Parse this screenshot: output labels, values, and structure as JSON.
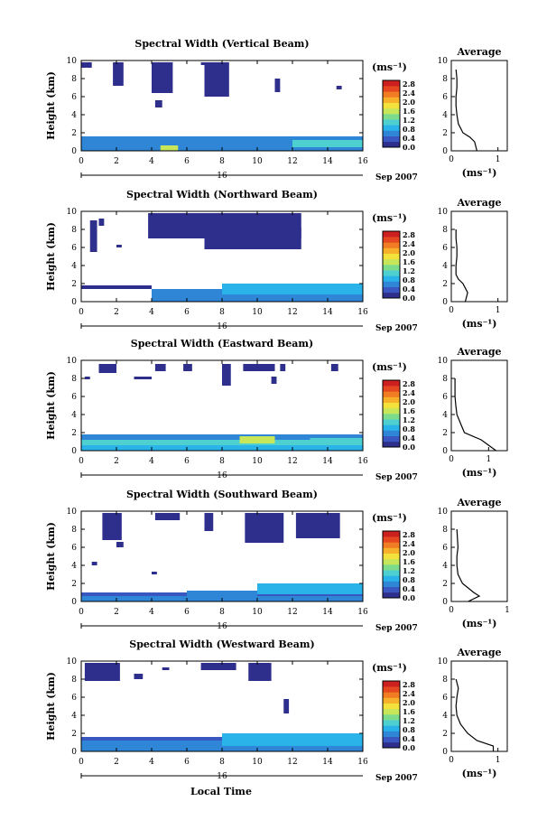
{
  "figure": {
    "xlabel": "Local Time",
    "date_prefix": "16",
    "date_suffix": "Sep 2007",
    "ylabel": "Height (km)",
    "unit": "(ms⁻¹)",
    "avg_title": "Average",
    "avg_xlabel": "(ms⁻¹)"
  },
  "colorbar": {
    "labels": [
      "2.8",
      "2.4",
      "2.0",
      "1.6",
      "1.2",
      "0.8",
      "0.4",
      "0.0"
    ],
    "colors": [
      "#2e2f8c",
      "#3a56c0",
      "#2f86d6",
      "#2ab3e8",
      "#4fd0d0",
      "#7ddc8c",
      "#c7e65a",
      "#f4e23c",
      "#f7b02a",
      "#f07d23",
      "#e54720",
      "#cc1f1f"
    ]
  },
  "chart_data": [
    {
      "type": "heatmap",
      "title": "Spectral Width (Vertical Beam)",
      "x_ticks": [
        0,
        2,
        4,
        6,
        8,
        10,
        12,
        14,
        16
      ],
      "y_ticks": [
        0,
        2,
        4,
        6,
        8,
        10
      ],
      "xlim": [
        0,
        16
      ],
      "ylim": [
        0,
        10
      ],
      "zlim": [
        0,
        3.0
      ],
      "cells": [
        [
          0,
          16,
          0,
          0.6,
          0.5
        ],
        [
          0,
          16,
          0.6,
          1.0,
          0.7
        ],
        [
          0,
          16,
          1.0,
          1.6,
          0.5
        ],
        [
          4.5,
          5.5,
          0,
          0.6,
          1.5
        ],
        [
          12,
          16,
          0.4,
          1.2,
          1.0
        ],
        [
          1.8,
          2.4,
          7.2,
          9.8,
          0.2
        ],
        [
          4.0,
          5.2,
          6.4,
          9.8,
          0.2
        ],
        [
          7.0,
          8.4,
          6.0,
          9.8,
          0.2
        ],
        [
          4.2,
          4.6,
          4.8,
          5.6,
          0.2
        ],
        [
          11.0,
          11.3,
          6.5,
          8.0,
          0.2
        ],
        [
          14.5,
          14.8,
          6.8,
          7.2,
          0.2
        ],
        [
          0,
          0.6,
          9.2,
          9.8,
          0.2
        ],
        [
          6.8,
          7.4,
          9.5,
          9.8,
          0.2
        ]
      ],
      "avg": {
        "x": [
          0.55,
          0.5,
          0.4,
          0.25,
          0.15,
          0.12,
          0.1,
          0.1,
          0.12,
          0.12,
          0.1
        ],
        "y": [
          0,
          1,
          1.5,
          2,
          3,
          4,
          5,
          6,
          7,
          8,
          9
        ],
        "xlim": [
          0,
          1.2
        ],
        "x_ticks": [
          0,
          1
        ],
        "y_ticks": [
          0,
          2,
          4,
          6,
          8,
          10
        ]
      }
    },
    {
      "type": "heatmap",
      "title": "Spectral Width (Northward Beam)",
      "x_ticks": [
        0,
        2,
        4,
        6,
        8,
        10,
        12,
        14,
        16
      ],
      "y_ticks": [
        0,
        2,
        4,
        6,
        8,
        10
      ],
      "xlim": [
        0,
        16
      ],
      "ylim": [
        0,
        10
      ],
      "zlim": [
        0,
        3.0
      ],
      "cells": [
        [
          0,
          4,
          1.4,
          1.8,
          0.2
        ],
        [
          4,
          16,
          0,
          0.6,
          0.5
        ],
        [
          4,
          16,
          0.6,
          1.4,
          0.6
        ],
        [
          8,
          16,
          0.8,
          2.0,
          0.9
        ],
        [
          0.5,
          0.9,
          5.5,
          9.0,
          0.2
        ],
        [
          3.8,
          7.5,
          7.0,
          9.8,
          0.2
        ],
        [
          7.0,
          12.5,
          5.8,
          9.8,
          0.2
        ],
        [
          1.0,
          1.3,
          8.4,
          9.2,
          0.2
        ],
        [
          11.5,
          12.5,
          7.0,
          8.2,
          0.2
        ],
        [
          2.0,
          2.3,
          6.0,
          6.3,
          0.2
        ]
      ],
      "avg": {
        "x": [
          0.3,
          0.35,
          0.25,
          0.15,
          0.1,
          0.1,
          0.12,
          0.12,
          0.1,
          0.1
        ],
        "y": [
          0,
          1,
          2,
          2.5,
          3,
          4,
          5,
          6,
          7,
          8
        ],
        "xlim": [
          0,
          1.2
        ],
        "x_ticks": [
          0,
          1
        ],
        "y_ticks": [
          0,
          2,
          4,
          6,
          8,
          10
        ]
      }
    },
    {
      "type": "heatmap",
      "title": "Spectral Width (Eastward Beam)",
      "x_ticks": [
        0,
        2,
        4,
        6,
        8,
        10,
        12,
        14,
        16
      ],
      "y_ticks": [
        0,
        2,
        4,
        6,
        8,
        10
      ],
      "xlim": [
        0,
        16
      ],
      "ylim": [
        0,
        10
      ],
      "zlim": [
        0,
        3.0
      ],
      "cells": [
        [
          0,
          16,
          0,
          0.6,
          0.8
        ],
        [
          0,
          16,
          0.6,
          1.2,
          1.0
        ],
        [
          0,
          16,
          1.2,
          1.8,
          0.6
        ],
        [
          9,
          11,
          0.8,
          1.6,
          1.6
        ],
        [
          13,
          16,
          0.6,
          1.4,
          1.2
        ],
        [
          1.0,
          2.0,
          8.6,
          9.6,
          0.2
        ],
        [
          4.2,
          4.8,
          8.8,
          9.6,
          0.2
        ],
        [
          5.8,
          6.3,
          8.8,
          9.6,
          0.2
        ],
        [
          8.0,
          8.5,
          7.2,
          9.6,
          0.2
        ],
        [
          9.2,
          11.0,
          8.8,
          9.6,
          0.2
        ],
        [
          11.3,
          11.6,
          8.8,
          9.6,
          0.2
        ],
        [
          14.2,
          14.6,
          8.8,
          9.6,
          0.2
        ],
        [
          0.2,
          0.5,
          7.9,
          8.2,
          0.2
        ],
        [
          3.0,
          4.0,
          7.9,
          8.2,
          0.2
        ],
        [
          10.8,
          11.1,
          7.4,
          8.2,
          0.2
        ]
      ],
      "avg": {
        "x": [
          1.2,
          1.0,
          0.8,
          0.35,
          0.25,
          0.15,
          0.12,
          0.1,
          0.1
        ],
        "y": [
          0,
          0.6,
          1.2,
          2.0,
          3,
          4,
          5,
          6,
          8
        ],
        "xlim": [
          0,
          1.5
        ],
        "x_ticks": [
          0,
          1
        ],
        "y_ticks": [
          0,
          2,
          4,
          6,
          8,
          10
        ]
      }
    },
    {
      "type": "heatmap",
      "title": "Spectral Width (Southward Beam)",
      "x_ticks": [
        0,
        2,
        4,
        6,
        8,
        10,
        12,
        14,
        16
      ],
      "y_ticks": [
        0,
        2,
        4,
        6,
        8,
        10
      ],
      "xlim": [
        0,
        16
      ],
      "ylim": [
        0,
        10
      ],
      "zlim": [
        0,
        3.0
      ],
      "cells": [
        [
          0,
          16,
          0,
          0.6,
          0.6
        ],
        [
          0,
          16,
          0.6,
          1.0,
          0.4
        ],
        [
          10,
          16,
          0.8,
          2.0,
          0.9
        ],
        [
          6,
          10,
          0.6,
          1.2,
          0.6
        ],
        [
          1.2,
          2.3,
          6.8,
          9.8,
          0.2
        ],
        [
          4.2,
          5.6,
          9.0,
          9.8,
          0.2
        ],
        [
          7.0,
          7.5,
          7.8,
          9.8,
          0.2
        ],
        [
          9.3,
          11.5,
          6.5,
          9.8,
          0.2
        ],
        [
          12.2,
          14.7,
          7.0,
          9.8,
          0.2
        ],
        [
          2.0,
          2.4,
          6.0,
          6.6,
          0.2
        ],
        [
          0.6,
          0.9,
          4.0,
          4.4,
          0.2
        ],
        [
          4.0,
          4.3,
          3.0,
          3.3,
          0.2
        ]
      ],
      "avg": {
        "x": [
          0.3,
          0.5,
          0.4,
          0.2,
          0.12,
          0.1,
          0.1,
          0.12,
          0.1
        ],
        "y": [
          0,
          0.6,
          1.0,
          2.0,
          3,
          4,
          5,
          6,
          8
        ],
        "xlim": [
          0,
          1.0
        ],
        "x_ticks": [
          0,
          1
        ],
        "y_ticks": [
          0,
          2,
          4,
          6,
          8,
          10
        ]
      }
    },
    {
      "type": "heatmap",
      "title": "Spectral Width (Westward Beam)",
      "x_ticks": [
        0,
        2,
        4,
        6,
        8,
        10,
        12,
        14,
        16
      ],
      "y_ticks": [
        0,
        2,
        4,
        6,
        8,
        10
      ],
      "xlim": [
        0,
        16
      ],
      "ylim": [
        0,
        10
      ],
      "zlim": [
        0,
        3.0
      ],
      "cells": [
        [
          0,
          16,
          0,
          0.6,
          0.5
        ],
        [
          0,
          16,
          0.6,
          1.2,
          0.6
        ],
        [
          0,
          16,
          1.2,
          1.6,
          0.4
        ],
        [
          8,
          16,
          0.6,
          2.0,
          0.9
        ],
        [
          0.2,
          2.2,
          7.8,
          9.8,
          0.2
        ],
        [
          3.0,
          3.5,
          8.0,
          8.6,
          0.2
        ],
        [
          6.8,
          8.8,
          9.0,
          9.8,
          0.2
        ],
        [
          9.5,
          10.8,
          7.8,
          9.8,
          0.2
        ],
        [
          11.5,
          11.8,
          4.2,
          5.8,
          0.2
        ],
        [
          4.6,
          5.0,
          9.0,
          9.3,
          0.2
        ]
      ],
      "avg": {
        "x": [
          0.9,
          0.9,
          0.55,
          0.35,
          0.2,
          0.12,
          0.1,
          0.12,
          0.15,
          0.1
        ],
        "y": [
          0,
          0.6,
          1.2,
          2.0,
          3,
          4,
          5,
          6,
          7,
          8
        ],
        "xlim": [
          0,
          1.2
        ],
        "x_ticks": [
          0,
          1
        ],
        "y_ticks": [
          0,
          2,
          4,
          6,
          8,
          10
        ]
      }
    }
  ]
}
